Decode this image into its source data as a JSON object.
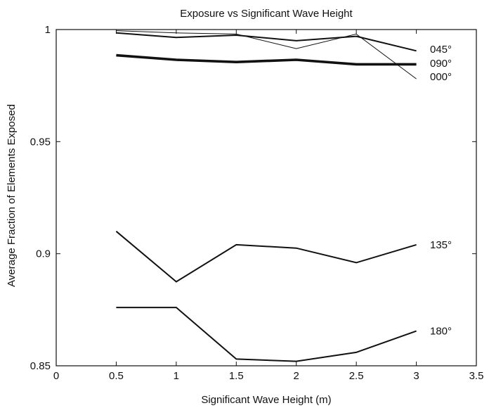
{
  "chart_data": {
    "type": "line",
    "title": "Exposure vs Significant Wave Height",
    "xlabel": "Significant Wave Height (m)",
    "ylabel": "Average Fraction of Elements Exposed",
    "xlim": [
      0,
      3.5
    ],
    "ylim": [
      0.85,
      1
    ],
    "xticks": [
      0,
      0.5,
      1,
      1.5,
      2,
      2.5,
      3,
      3.5
    ],
    "xtick_labels": [
      "0",
      "0.5",
      "1",
      "1.5",
      "2",
      "2.5",
      "3",
      "3.5"
    ],
    "yticks": [
      0.85,
      0.9,
      0.95,
      1
    ],
    "ytick_labels": [
      "0.85",
      "0.9",
      "0.95",
      "1"
    ],
    "grid": false,
    "legend": "none; series labelled at right end of each line",
    "line_color": "#111111",
    "x": [
      0.5,
      1,
      1.5,
      2,
      2.5,
      3
    ],
    "series": [
      {
        "name": "045°",
        "values": [
          0.9985,
          0.9965,
          0.9975,
          0.995,
          0.997,
          0.9905
        ],
        "weight": "medium"
      },
      {
        "name": "090°",
        "values": [
          0.9885,
          0.9865,
          0.9855,
          0.9865,
          0.9845,
          0.9845
        ],
        "weight": "heavy"
      },
      {
        "name": "000°",
        "values": [
          0.9995,
          0.9985,
          0.998,
          0.9915,
          0.998,
          0.978
        ],
        "weight": "light"
      },
      {
        "name": "135°",
        "values": [
          0.91,
          0.8875,
          0.904,
          0.9025,
          0.896,
          0.904
        ],
        "weight": "medium"
      },
      {
        "name": "180°",
        "values": [
          0.876,
          0.876,
          0.853,
          0.852,
          0.856,
          0.8655
        ],
        "weight": "medium"
      }
    ]
  }
}
